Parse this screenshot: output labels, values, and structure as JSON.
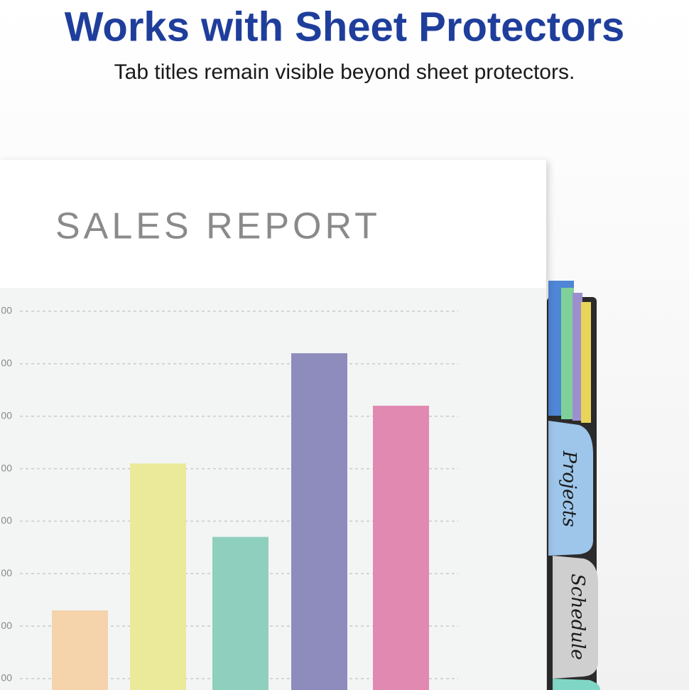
{
  "header": {
    "title": "Works with Sheet Protectors",
    "subtitle": "Tab titles remain visible beyond sheet protectors."
  },
  "document": {
    "title": "SALES REPORT"
  },
  "tabs": [
    "Projects",
    "Schedule"
  ],
  "chart_data": {
    "type": "bar",
    "values": [
      2.3,
      5.1,
      3.7,
      7.2,
      6.2
    ],
    "colors": [
      "#f5d3ab",
      "#ebea9b",
      "#8fcfbd",
      "#8e8bbd",
      "#e189b0"
    ],
    "ylim": [
      1,
      8
    ],
    "yticks": [
      {
        "value": 1,
        "label": "00"
      },
      {
        "value": 2,
        "label": "00"
      },
      {
        "value": 3,
        "label": "00"
      },
      {
        "value": 4,
        "label": "00"
      },
      {
        "value": 5,
        "label": "00"
      },
      {
        "value": 6,
        "label": "00"
      },
      {
        "value": 7,
        "label": "00"
      },
      {
        "value": 8,
        "label": "00"
      }
    ],
    "grid": true
  }
}
